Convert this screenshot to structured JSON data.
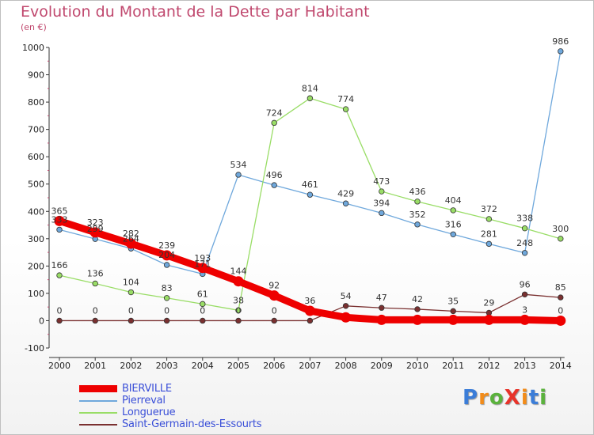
{
  "title": "Evolution du Montant de la Dette par Habitant",
  "unit": "(en €)",
  "logo": {
    "text": "ProXiti",
    "colors": [
      "#3b7dd8",
      "#f28c1a",
      "#5ab23c",
      "#e8332a",
      "#f28c1a",
      "#3b7dd8",
      "#5ab23c"
    ]
  },
  "chart_data": {
    "type": "line",
    "x": [
      "2000",
      "2001",
      "2002",
      "2003",
      "2004",
      "2005",
      "2006",
      "2007",
      "2008",
      "2009",
      "2010",
      "2011",
      "2012",
      "2013",
      "2014"
    ],
    "ylim": [
      -100,
      1000
    ],
    "yticks": [
      -100,
      0,
      100,
      200,
      300,
      400,
      500,
      600,
      700,
      800,
      900,
      1000
    ],
    "grid": false,
    "legend_position": "bottom-left",
    "series": [
      {
        "name": "BIERVILLE",
        "color": "#ee0000",
        "width": 9,
        "values": [
          365,
          323,
          282,
          239,
          193,
          144,
          92,
          36,
          12,
          3,
          3,
          3,
          3,
          3,
          0
        ],
        "labels": [
          "365",
          "323",
          "282",
          "239",
          "193",
          "144",
          "92",
          "36",
          "",
          "",
          "",
          "",
          "",
          "3",
          "0"
        ]
      },
      {
        "name": "Pierreval",
        "color": "#6fa8dc",
        "width": 1.3,
        "values": [
          333,
          299,
          264,
          204,
          171,
          534,
          496,
          461,
          429,
          394,
          352,
          316,
          281,
          248,
          986
        ],
        "labels": [
          "333",
          "299",
          "264",
          "204",
          "171",
          "534",
          "496",
          "461",
          "429",
          "394",
          "352",
          "316",
          "281",
          "248",
          "986"
        ]
      },
      {
        "name": "Longuerue",
        "color": "#99dd66",
        "width": 1.3,
        "values": [
          166,
          136,
          104,
          83,
          61,
          38,
          724,
          814,
          774,
          473,
          436,
          404,
          372,
          338,
          300
        ],
        "labels": [
          "166",
          "136",
          "104",
          "83",
          "61",
          "38",
          "724",
          "814",
          "774",
          "473",
          "436",
          "404",
          "372",
          "338",
          "300"
        ]
      },
      {
        "name": "Saint-Germain-des-Essourts",
        "color": "#7a3030",
        "width": 1.3,
        "values": [
          0,
          0,
          0,
          0,
          0,
          0,
          0,
          0,
          54,
          47,
          42,
          35,
          29,
          96,
          85
        ],
        "labels": [
          "0",
          "0",
          "0",
          "0",
          "0",
          "0",
          "0",
          "",
          "54",
          "47",
          "42",
          "35",
          "29",
          "96",
          "85"
        ]
      }
    ]
  }
}
